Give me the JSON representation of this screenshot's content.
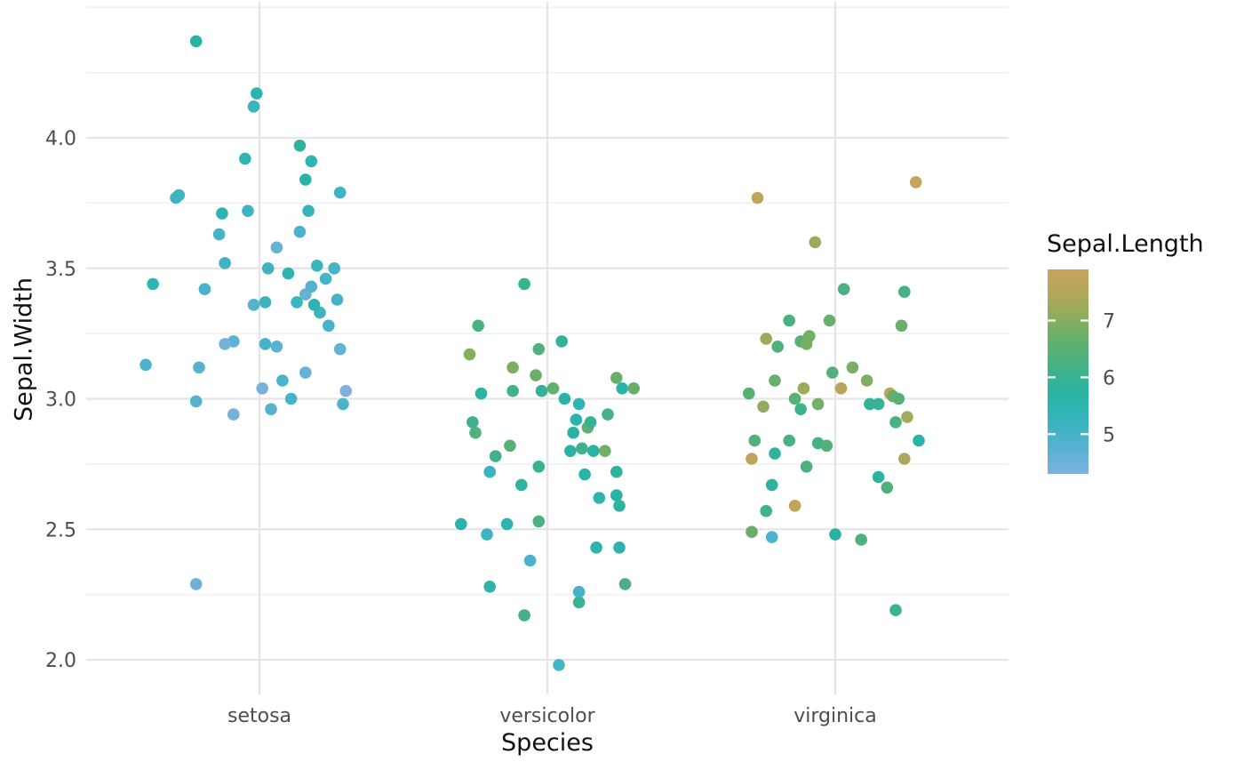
{
  "figure": {
    "background": "#ffffff"
  },
  "chart_data": {
    "type": "scatter",
    "subtype": "jitter",
    "title": "",
    "xlabel": "Species",
    "ylabel": "Sepal.Width",
    "legend_title": "Sepal.Length",
    "legend_position": "right",
    "grid": true,
    "categories": [
      "setosa",
      "versicolor",
      "virginica"
    ],
    "x_axis": {
      "tick_labels": [
        "setosa",
        "versicolor",
        "virginica"
      ]
    },
    "y_axis": {
      "ticks": [
        2.0,
        2.5,
        3.0,
        3.5,
        4.0
      ],
      "tick_labels": [
        "2.0",
        "2.5",
        "3.0",
        "3.5",
        "4.0"
      ],
      "minor_ticks": [
        2.25,
        2.75,
        3.25,
        3.75,
        4.25,
        4.5
      ],
      "range": [
        1.87,
        4.52
      ]
    },
    "color_axis": {
      "ticks": [
        7,
        6,
        5
      ],
      "tick_labels": [
        "7",
        "6",
        "5"
      ],
      "range": [
        4.3,
        7.9
      ],
      "stops": [
        [
          4.3,
          "#7fb0df"
        ],
        [
          4.7,
          "#5bb2d3"
        ],
        [
          5.0,
          "#45b3c8"
        ],
        [
          5.4,
          "#2fb4b4"
        ],
        [
          5.7,
          "#2ab3a4"
        ],
        [
          6.0,
          "#39b293"
        ],
        [
          6.3,
          "#4bb180"
        ],
        [
          6.6,
          "#60b06f"
        ],
        [
          6.9,
          "#7cae62"
        ],
        [
          7.2,
          "#9aab5c"
        ],
        [
          7.5,
          "#b2a75a"
        ],
        [
          7.9,
          "#c9a35a"
        ]
      ]
    },
    "style": {
      "major_grid_color": "#e5e5e5",
      "minor_grid_color": "#f1f1f1",
      "tick_label_color": "#4d4d4d",
      "title_color": "#111111",
      "point_radius": 6.8
    },
    "series": [
      {
        "name": "setosa",
        "sepal_width": [
          3.5,
          3.0,
          3.2,
          3.1,
          3.6,
          3.9,
          3.4,
          3.4,
          2.9,
          3.1,
          3.7,
          3.4,
          3.0,
          3.0,
          4.0,
          4.4,
          3.9,
          3.5,
          3.8,
          3.8,
          3.4,
          3.7,
          3.6,
          3.3,
          3.4,
          3.0,
          3.4,
          3.5,
          3.4,
          3.2,
          3.1,
          3.4,
          4.1,
          4.2,
          3.1,
          3.2,
          3.5,
          3.6,
          3.0,
          3.4,
          3.5,
          2.3,
          3.2,
          3.5,
          3.8,
          3.0,
          3.8,
          3.2,
          3.7,
          3.3
        ],
        "sepal_length": [
          5.1,
          4.9,
          4.7,
          4.6,
          5.0,
          5.4,
          4.6,
          5.0,
          4.4,
          4.9,
          5.4,
          4.8,
          4.8,
          4.3,
          5.8,
          5.7,
          5.4,
          5.1,
          5.7,
          5.1,
          5.4,
          5.1,
          4.6,
          5.1,
          4.8,
          5.0,
          5.0,
          5.2,
          5.2,
          4.7,
          4.8,
          5.4,
          5.2,
          5.5,
          4.9,
          5.0,
          5.5,
          4.9,
          4.4,
          5.1,
          5.0,
          4.5,
          4.4,
          5.0,
          5.1,
          4.8,
          5.1,
          4.6,
          5.3,
          5.0
        ],
        "jitter_x": [
          -0.12,
          0.29,
          0.06,
          0.16,
          -0.14,
          -0.05,
          0.16,
          -0.19,
          -0.09,
          -0.395,
          -0.13,
          0.18,
          -0.22,
          0.3,
          0.14,
          -0.22,
          0.18,
          0.03,
          0.16,
          0.28,
          -0.37,
          -0.04,
          0.06,
          0.21,
          -0.02,
          0.11,
          0.27,
          0.2,
          0.13,
          -0.09,
          -0.21,
          0.19,
          -0.02,
          -0.01,
          0.08,
          0.02,
          0.1,
          0.14,
          0.01,
          0.02,
          0.23,
          -0.22,
          -0.12,
          0.26,
          -0.28,
          0.04,
          -0.29,
          0.28,
          0.17,
          0.24
        ],
        "jitter_y": [
          0.02,
          -0.02,
          0.0,
          0.0,
          0.03,
          0.02,
          0.0,
          0.02,
          0.04,
          0.03,
          0.01,
          0.03,
          -0.01,
          0.03,
          -0.03,
          -0.03,
          0.01,
          0.0,
          0.04,
          -0.01,
          0.04,
          0.02,
          -0.02,
          0.03,
          -0.04,
          0.0,
          -0.02,
          0.01,
          -0.03,
          0.02,
          0.02,
          -0.04,
          0.02,
          -0.03,
          -0.03,
          0.01,
          -0.02,
          0.04,
          0.04,
          -0.03,
          -0.04,
          -0.01,
          0.01,
          0.0,
          -0.02,
          -0.04,
          -0.03,
          -0.01,
          0.02,
          -0.02
        ]
      },
      {
        "name": "versicolor",
        "sepal_width": [
          3.2,
          3.2,
          3.1,
          2.3,
          2.8,
          2.8,
          3.3,
          2.4,
          2.9,
          2.7,
          2.0,
          3.0,
          2.2,
          2.9,
          2.9,
          3.1,
          3.0,
          2.7,
          2.2,
          2.5,
          3.2,
          2.8,
          2.5,
          2.8,
          2.9,
          3.0,
          2.8,
          3.0,
          2.9,
          2.6,
          2.4,
          2.4,
          2.7,
          2.7,
          3.0,
          3.4,
          3.1,
          2.3,
          3.0,
          2.5,
          2.6,
          3.0,
          2.6,
          2.3,
          2.7,
          3.0,
          2.9,
          2.9,
          2.5,
          2.8
        ],
        "sepal_length": [
          7.0,
          6.4,
          6.9,
          5.5,
          6.5,
          5.7,
          6.3,
          4.9,
          6.6,
          5.2,
          5.0,
          5.9,
          6.0,
          6.1,
          5.6,
          6.7,
          5.6,
          5.8,
          6.2,
          5.6,
          5.9,
          6.1,
          6.3,
          6.1,
          6.4,
          6.6,
          6.8,
          6.7,
          6.0,
          5.7,
          5.5,
          5.5,
          5.8,
          6.0,
          5.4,
          6.0,
          6.7,
          6.3,
          5.6,
          5.5,
          5.5,
          6.1,
          5.8,
          5.0,
          5.6,
          5.7,
          5.7,
          6.2,
          5.1,
          5.7
        ],
        "jitter_x": [
          -0.27,
          -0.03,
          -0.12,
          -0.2,
          -0.13,
          0.08,
          -0.24,
          -0.06,
          0.14,
          -0.2,
          0.04,
          -0.02,
          0.11,
          -0.26,
          0.1,
          -0.04,
          0.26,
          -0.09,
          -0.08,
          -0.3,
          0.05,
          -0.18,
          -0.03,
          0.12,
          -0.25,
          0.02,
          0.2,
          0.3,
          0.15,
          0.24,
          0.17,
          0.25,
          0.24,
          -0.03,
          0.11,
          -0.08,
          0.24,
          0.27,
          0.06,
          -0.14,
          0.18,
          -0.12,
          0.25,
          0.11,
          0.13,
          -0.23,
          0.09,
          0.21,
          -0.21,
          0.16
        ],
        "jitter_y": [
          -0.03,
          -0.01,
          0.02,
          -0.02,
          0.02,
          0.0,
          -0.02,
          -0.02,
          -0.01,
          0.02,
          -0.02,
          0.03,
          0.02,
          0.01,
          0.02,
          -0.01,
          0.04,
          -0.03,
          -0.03,
          0.02,
          0.02,
          -0.02,
          0.03,
          0.01,
          -0.03,
          0.04,
          0.0,
          0.04,
          0.01,
          0.03,
          0.03,
          0.03,
          0.02,
          0.04,
          -0.02,
          0.04,
          -0.02,
          -0.01,
          0.0,
          0.02,
          0.02,
          0.03,
          -0.01,
          -0.04,
          0.01,
          0.02,
          -0.03,
          0.04,
          -0.02,
          0.0
        ]
      },
      {
        "name": "virginica",
        "sepal_width": [
          3.3,
          2.7,
          3.0,
          2.9,
          3.0,
          3.0,
          2.5,
          2.9,
          2.5,
          3.6,
          3.2,
          2.7,
          3.0,
          2.5,
          2.8,
          3.2,
          3.0,
          3.8,
          2.6,
          2.2,
          3.2,
          2.8,
          2.8,
          2.7,
          3.3,
          3.2,
          2.8,
          3.0,
          2.8,
          3.0,
          2.8,
          3.8,
          2.8,
          2.8,
          2.6,
          3.0,
          3.4,
          3.1,
          3.0,
          3.1,
          3.1,
          3.1,
          2.7,
          3.2,
          3.3,
          3.0,
          2.5,
          3.0,
          3.4,
          3.0
        ],
        "sepal_length": [
          6.3,
          5.8,
          7.1,
          6.3,
          6.5,
          7.6,
          4.9,
          7.3,
          6.7,
          7.2,
          6.5,
          6.4,
          6.8,
          5.7,
          5.8,
          6.4,
          6.5,
          7.7,
          7.7,
          6.0,
          6.9,
          5.6,
          7.7,
          6.3,
          6.7,
          7.2,
          6.2,
          6.1,
          6.4,
          7.2,
          7.4,
          7.9,
          6.4,
          6.3,
          6.1,
          7.7,
          6.3,
          6.4,
          6.0,
          6.9,
          6.7,
          6.9,
          5.8,
          6.8,
          6.7,
          6.7,
          6.3,
          6.5,
          6.2,
          5.9
        ],
        "jitter_x": [
          -0.16,
          0.15,
          -0.25,
          0.21,
          -0.3,
          0.02,
          -0.22,
          0.25,
          -0.29,
          -0.07,
          -0.12,
          0.18,
          -0.06,
          0.0,
          -0.21,
          -0.2,
          -0.14,
          -0.27,
          -0.14,
          0.21,
          -0.1,
          0.29,
          -0.29,
          -0.1,
          -0.02,
          -0.24,
          -0.06,
          -0.12,
          -0.28,
          -0.11,
          0.24,
          0.28,
          -0.03,
          -0.16,
          -0.24,
          0.19,
          0.03,
          -0.01,
          0.15,
          0.11,
          -0.21,
          0.06,
          -0.22,
          -0.09,
          0.23,
          0.2,
          0.09,
          0.22,
          0.24,
          0.12
        ],
        "jitter_y": [
          0.0,
          0.0,
          -0.03,
          0.01,
          0.02,
          0.04,
          -0.03,
          0.03,
          -0.01,
          0.0,
          0.02,
          -0.04,
          -0.02,
          -0.02,
          -0.01,
          0.0,
          0.0,
          -0.03,
          -0.01,
          -0.01,
          0.01,
          0.04,
          -0.03,
          0.04,
          0.0,
          0.03,
          0.03,
          -0.04,
          0.04,
          0.04,
          -0.03,
          0.03,
          0.02,
          0.04,
          -0.03,
          0.02,
          0.02,
          0.0,
          -0.02,
          -0.03,
          -0.03,
          0.02,
          -0.03,
          0.04,
          -0.02,
          0.01,
          -0.04,
          0.0,
          0.01,
          -0.02
        ]
      }
    ]
  }
}
